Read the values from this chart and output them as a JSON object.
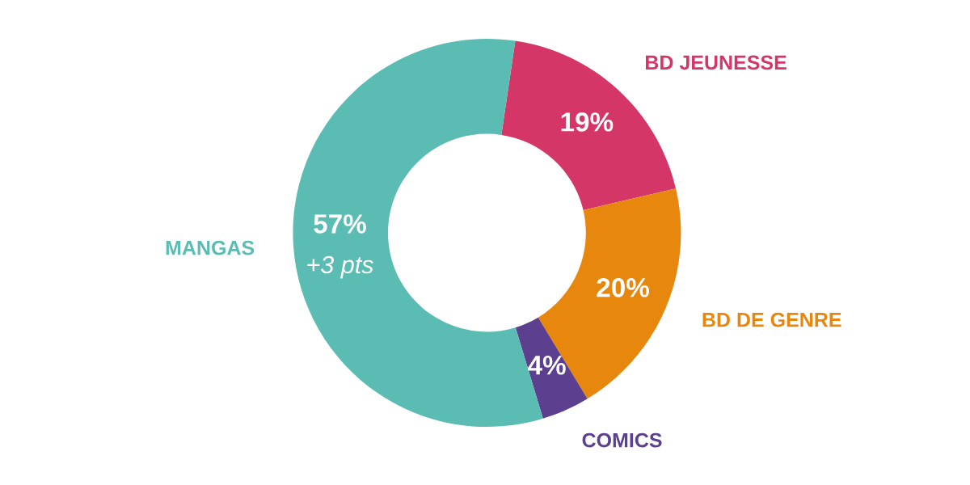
{
  "chart_data": {
    "type": "donut",
    "categories": [
      "BD JEUNESSE",
      "BD DE GENRE",
      "COMICS",
      "MANGAS"
    ],
    "values": [
      19,
      20,
      4,
      57
    ],
    "colors": [
      "#d43767",
      "#e8870e",
      "#5c3f8e",
      "#5bbcb3"
    ],
    "value_labels": [
      "19%",
      "20%",
      "4%",
      "57%"
    ],
    "annotations": [
      {
        "text": "+3 pts",
        "x": "MANGAS"
      }
    ]
  }
}
